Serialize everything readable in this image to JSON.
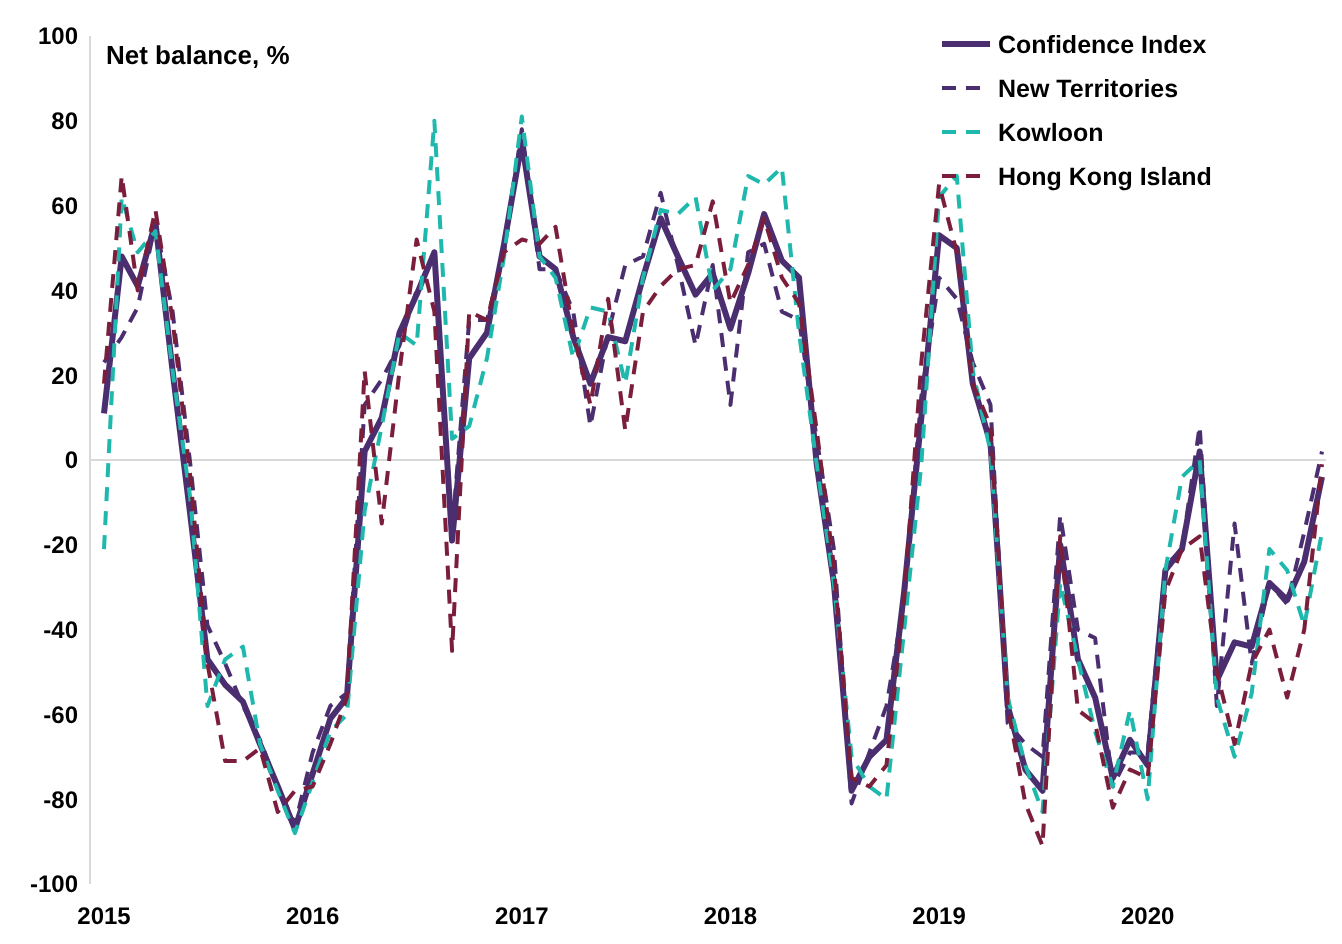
{
  "chart_data": {
    "type": "line",
    "ylabel": "Net balance, %",
    "x": [
      "2015-01",
      "2015-02",
      "2015-03",
      "2015-04",
      "2015-05",
      "2015-06",
      "2015-07",
      "2015-08",
      "2015-09",
      "2015-10",
      "2015-11",
      "2015-12",
      "2016-01",
      "2016-02",
      "2016-03",
      "2016-04",
      "2016-05",
      "2016-06",
      "2016-07",
      "2016-08",
      "2016-09",
      "2016-10",
      "2016-11",
      "2016-12",
      "2017-01",
      "2017-02",
      "2017-03",
      "2017-04",
      "2017-05",
      "2017-06",
      "2017-07",
      "2017-08",
      "2017-09",
      "2017-10",
      "2017-11",
      "2017-12",
      "2018-01",
      "2018-02",
      "2018-03",
      "2018-04",
      "2018-05",
      "2018-06",
      "2018-07",
      "2018-08",
      "2018-09",
      "2018-10",
      "2018-11",
      "2018-12",
      "2019-01",
      "2019-02",
      "2019-03",
      "2019-04",
      "2019-05",
      "2019-06",
      "2019-07",
      "2019-08",
      "2019-09",
      "2019-10",
      "2019-11",
      "2019-12",
      "2020-01",
      "2020-02",
      "2020-03",
      "2020-04",
      "2020-05",
      "2020-06",
      "2020-07",
      "2020-08",
      "2020-09",
      "2020-10",
      "2020-11"
    ],
    "series": [
      {
        "name": "Confidence Index",
        "color": "#4b2e6f",
        "line_style": "solid",
        "values": [
          11,
          48,
          41,
          56,
          21,
          -13,
          -47,
          -53,
          -57,
          -67,
          -77,
          -87,
          -74,
          -61,
          -56,
          2,
          10,
          30,
          39,
          49,
          -19,
          24,
          30,
          51,
          75,
          48,
          45,
          29,
          18,
          29,
          28,
          43,
          57,
          48,
          39,
          44,
          31,
          44,
          58,
          47,
          43,
          -1,
          -29,
          -78,
          -70,
          -66,
          -31,
          10,
          53,
          50,
          18,
          4,
          -58,
          -73,
          -78,
          -20,
          -47,
          -56,
          -75,
          -66,
          -72,
          -26,
          -21,
          2,
          -52,
          -43,
          -44,
          -29,
          -33,
          -24,
          -4
        ]
      },
      {
        "name": "New Territories",
        "color": "#4b2e6f",
        "line_style": "dashed",
        "values": [
          23,
          29,
          36,
          56,
          35,
          -1,
          -39,
          -48,
          -58,
          -66,
          -77,
          -86,
          -69,
          -58,
          -55,
          13,
          19,
          27,
          40,
          48,
          -17,
          33,
          33,
          49,
          78,
          45,
          45,
          35,
          8,
          30,
          46,
          48,
          63,
          46,
          27,
          46,
          13,
          49,
          51,
          35,
          33,
          5,
          -21,
          -81,
          -69,
          -58,
          -33,
          15,
          43,
          38,
          23,
          13,
          -62,
          -67,
          -70,
          -13,
          -40,
          -42,
          -77,
          -69,
          -69,
          -25,
          -21,
          8,
          -58,
          -15,
          -48,
          -29,
          -34,
          -17,
          2
        ]
      },
      {
        "name": "Kowloon",
        "color": "#1fb8ad",
        "line_style": "dashed",
        "values": [
          -21,
          62,
          49,
          54,
          21,
          -9,
          -58,
          -47,
          -44,
          -67,
          -78,
          -88,
          -76,
          -64,
          -60,
          -12,
          8,
          30,
          27,
          80,
          5,
          8,
          24,
          48,
          81,
          48,
          43,
          24,
          36,
          35,
          18,
          43,
          59,
          58,
          62,
          40,
          45,
          67,
          65,
          69,
          30,
          -1,
          -29,
          -70,
          -77,
          -80,
          -40,
          -1,
          62,
          67,
          21,
          2,
          -56,
          -72,
          -83,
          -29,
          -47,
          -64,
          -77,
          -59,
          -80,
          -26,
          -4,
          0,
          -56,
          -70,
          -55,
          -21,
          -26,
          -39,
          -17
        ]
      },
      {
        "name": "Hong Kong Island",
        "color": "#7b1e3c",
        "line_style": "dashed",
        "values": [
          18,
          67,
          40,
          59,
          33,
          -4,
          -48,
          -71,
          -71,
          -68,
          -83,
          -78,
          -77,
          -67,
          -56,
          21,
          -15,
          21,
          52,
          35,
          -45,
          35,
          33,
          49,
          52,
          51,
          55,
          30,
          13,
          38,
          7,
          35,
          41,
          45,
          46,
          61,
          37,
          46,
          57,
          43,
          37,
          7,
          -25,
          -75,
          -77,
          -72,
          -33,
          23,
          65,
          49,
          18,
          8,
          -58,
          -81,
          -91,
          -18,
          -59,
          -62,
          -82,
          -73,
          -75,
          -31,
          -21,
          -18,
          -50,
          -67,
          -48,
          -40,
          -56,
          -40,
          -1
        ]
      }
    ],
    "xlim": [
      "2015-01",
      "2020-11"
    ],
    "xticks": [
      {
        "value": "2015-01",
        "label": "2015"
      },
      {
        "value": "2016-01",
        "label": "2016"
      },
      {
        "value": "2017-01",
        "label": "2017"
      },
      {
        "value": "2018-01",
        "label": "2018"
      },
      {
        "value": "2019-01",
        "label": "2019"
      },
      {
        "value": "2020-01",
        "label": "2020"
      }
    ],
    "ylim": [
      -100,
      100
    ],
    "yticks": [
      -100,
      -80,
      -60,
      -40,
      -20,
      0,
      20,
      40,
      60,
      80,
      100
    ],
    "ref_lines": [
      {
        "axis": "y",
        "value": 0,
        "label": null,
        "color": "#d9d9d9"
      }
    ],
    "grid": false,
    "legend": "top right",
    "marker": "none"
  }
}
